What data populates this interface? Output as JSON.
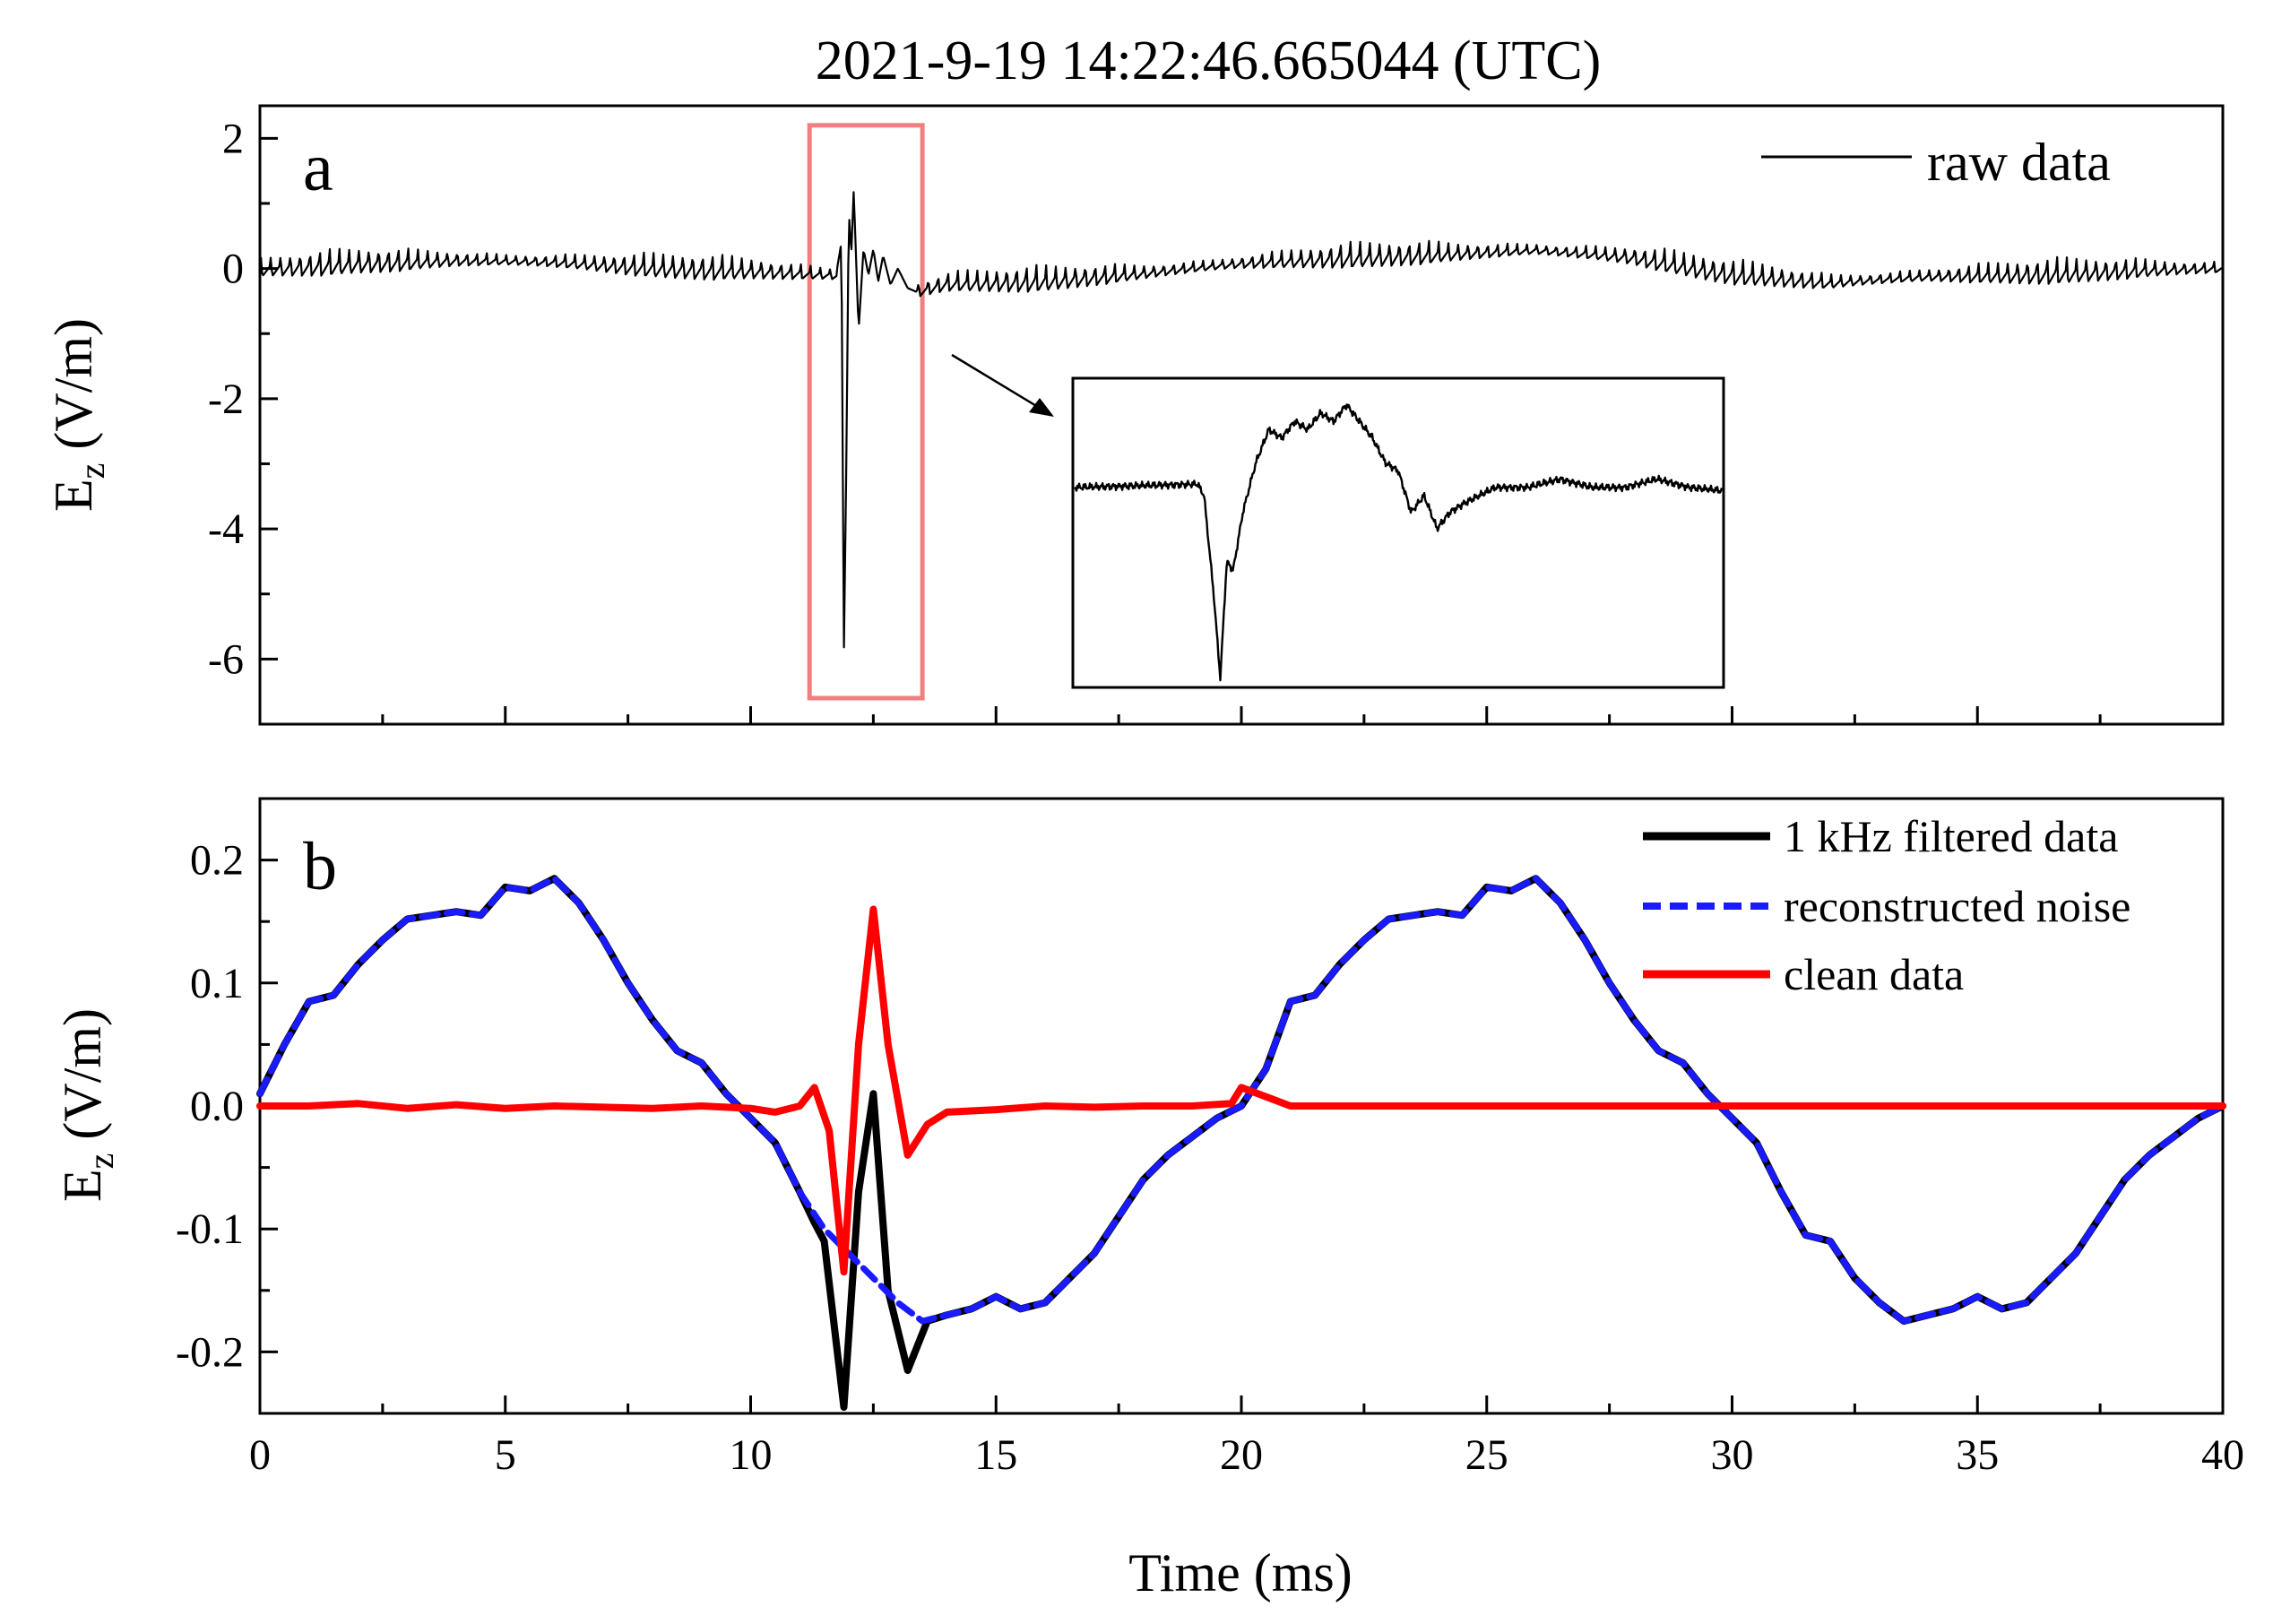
{
  "chart_data": {
    "title": "2021-9-19 14:22:46.665044 (UTC)",
    "shared_x": {
      "label": "Time (ms)",
      "range": [
        0,
        40
      ],
      "ticks": [
        "0",
        "5",
        "10",
        "15",
        "20",
        "25",
        "30",
        "35",
        "40"
      ]
    },
    "panels": [
      {
        "id": "a",
        "letter": "a",
        "type": "line",
        "ylabel": "E",
        "ylabel_sub": "z",
        "ylabel_unit": " (V/m)",
        "ylim": [
          -7,
          2.5
        ],
        "yticks": [
          "2",
          "0",
          "-2",
          "-4",
          "-6"
        ],
        "legend": {
          "position": "top-right",
          "entries": [
            "raw data"
          ]
        },
        "series": [
          {
            "name": "raw data",
            "color": "#000000",
            "noise_period_ms": 0.2,
            "baseline_x": [
              0,
              2,
              4,
              6,
              8,
              10,
              11,
              12,
              13.3,
              14,
              16,
              18,
              20,
              22,
              24,
              26,
              28,
              30,
              32,
              34,
              36,
              38,
              40
            ],
            "baseline_y": [
              0.02,
              0.12,
              0.15,
              0.12,
              0.05,
              0.0,
              -0.05,
              -0.1,
              -0.35,
              -0.2,
              -0.15,
              -0.05,
              0.1,
              0.2,
              0.25,
              0.3,
              0.2,
              -0.05,
              -0.2,
              -0.1,
              -0.05,
              0.0,
              0.02
            ],
            "spike_x": [
              11.75,
              11.85,
              11.9,
              11.95,
              12.0,
              12.05,
              12.1,
              12.2,
              12.3,
              12.4,
              12.5,
              12.6,
              12.7,
              12.85,
              13.0,
              13.2,
              13.35
            ],
            "spike_y": [
              -0.05,
              0.4,
              -5.9,
              -3.0,
              0.9,
              0.2,
              1.2,
              -0.95,
              0.3,
              -0.1,
              0.3,
              -0.2,
              0.2,
              -0.25,
              0.0,
              -0.3,
              -0.35
            ]
          }
        ],
        "highlight_box": {
          "x_range": [
            11.2,
            13.5
          ],
          "y_range": [
            -6.6,
            2.2
          ],
          "color": "#f08080"
        },
        "inset": {
          "x": [
            0,
            0.19,
            0.2,
            0.215,
            0.225,
            0.235,
            0.245,
            0.26,
            0.28,
            0.3,
            0.32,
            0.34,
            0.36,
            0.38,
            0.4,
            0.42,
            0.44,
            0.46,
            0.48,
            0.5,
            0.52,
            0.54,
            0.56,
            0.58,
            0.6,
            0.65,
            0.7,
            0.75,
            0.8,
            0.85,
            0.9,
            0.95,
            1.0
          ],
          "y": [
            0.15,
            0.17,
            0.1,
            -0.5,
            -1.0,
            -0.3,
            -0.35,
            0.0,
            0.3,
            0.5,
            0.45,
            0.55,
            0.5,
            0.6,
            0.55,
            0.65,
            0.55,
            0.45,
            0.3,
            0.25,
            0.0,
            0.1,
            -0.1,
            0.0,
            0.05,
            0.15,
            0.15,
            0.2,
            0.15,
            0.15,
            0.2,
            0.15,
            0.13
          ]
        }
      },
      {
        "id": "b",
        "letter": "b",
        "type": "line",
        "ylabel": "E",
        "ylabel_sub": "z",
        "ylabel_unit": " (V/m)",
        "ylim": [
          -0.25,
          0.25
        ],
        "yticks": [
          "0.2",
          "0.1",
          "0.0",
          "-0.1",
          "-0.2"
        ],
        "legend": {
          "position": "top-right",
          "entries": [
            "1 kHz filtered data",
            "reconstructed noise",
            "clean data"
          ]
        },
        "series": [
          {
            "name": "1 kHz filtered data",
            "color": "#000000",
            "style": "solid",
            "x": [
              0,
              0.5,
              1,
              1.5,
              2,
              2.5,
              3,
              3.5,
              4,
              4.5,
              5,
              5.5,
              6,
              6.5,
              7,
              7.5,
              8,
              8.5,
              9,
              9.5,
              10,
              10.5,
              11,
              11.3,
              11.5,
              11.9,
              12.2,
              12.5,
              12.8,
              13.2,
              13.6,
              14,
              14.5,
              15,
              15.5,
              16,
              16.5,
              17,
              17.5,
              18,
              18.5,
              19,
              19.5,
              20,
              20.5,
              21,
              21.5,
              22,
              22.5,
              23,
              23.5,
              24,
              24.5,
              25,
              25.5,
              26,
              26.5,
              27,
              27.5,
              28,
              28.5,
              29,
              29.5,
              30,
              30.5,
              31,
              31.5,
              32,
              32.5,
              33,
              33.5,
              34,
              34.5,
              35,
              35.5,
              36,
              36.5,
              37,
              37.5,
              38,
              38.5,
              39,
              39.5,
              40
            ],
            "y": [
              0.01,
              0.05,
              0.085,
              0.09,
              0.115,
              0.135,
              0.152,
              0.155,
              0.158,
              0.155,
              0.178,
              0.175,
              0.185,
              0.165,
              0.135,
              0.1,
              0.07,
              0.045,
              0.035,
              0.01,
              -0.01,
              -0.03,
              -0.07,
              -0.095,
              -0.11,
              -0.245,
              -0.07,
              0.01,
              -0.15,
              -0.215,
              -0.175,
              -0.17,
              -0.165,
              -0.155,
              -0.165,
              -0.16,
              -0.14,
              -0.12,
              -0.09,
              -0.06,
              -0.04,
              -0.025,
              -0.01,
              0.0,
              0.03,
              0.085,
              0.09,
              0.115,
              0.135,
              0.152,
              0.155,
              0.158,
              0.155,
              0.178,
              0.175,
              0.185,
              0.165,
              0.135,
              0.1,
              0.07,
              0.045,
              0.035,
              0.01,
              -0.01,
              -0.03,
              -0.07,
              -0.105,
              -0.11,
              -0.14,
              -0.16,
              -0.175,
              -0.17,
              -0.165,
              -0.155,
              -0.165,
              -0.16,
              -0.14,
              -0.12,
              -0.09,
              -0.06,
              -0.04,
              -0.025,
              -0.01,
              0.0
            ]
          },
          {
            "name": "reconstructed noise",
            "color": "#1a1aff",
            "style": "dashed",
            "x": [
              0,
              0.5,
              1,
              1.5,
              2,
              2.5,
              3,
              3.5,
              4,
              4.5,
              5,
              5.5,
              6,
              6.5,
              7,
              7.5,
              8,
              8.5,
              9,
              9.5,
              10,
              10.5,
              11,
              11.5,
              12,
              12.5,
              13,
              13.5,
              14,
              14.5,
              15,
              15.5,
              16,
              16.5,
              17,
              17.5,
              18,
              18.5,
              19,
              19.5,
              20,
              20.5,
              21,
              21.5,
              22,
              22.5,
              23,
              23.5,
              24,
              24.5,
              25,
              25.5,
              26,
              26.5,
              27,
              27.5,
              28,
              28.5,
              29,
              29.5,
              30,
              30.5,
              31,
              31.5,
              32,
              32.5,
              33,
              33.5,
              34,
              34.5,
              35,
              35.5,
              36,
              36.5,
              37,
              37.5,
              38,
              38.5,
              39,
              39.5,
              40
            ],
            "y": [
              0.01,
              0.05,
              0.085,
              0.09,
              0.115,
              0.135,
              0.152,
              0.155,
              0.158,
              0.155,
              0.178,
              0.175,
              0.185,
              0.165,
              0.135,
              0.1,
              0.07,
              0.045,
              0.035,
              0.01,
              -0.01,
              -0.03,
              -0.07,
              -0.1,
              -0.12,
              -0.14,
              -0.16,
              -0.175,
              -0.17,
              -0.165,
              -0.155,
              -0.165,
              -0.16,
              -0.14,
              -0.12,
              -0.09,
              -0.06,
              -0.04,
              -0.025,
              -0.01,
              0.0,
              0.03,
              0.085,
              0.09,
              0.115,
              0.135,
              0.152,
              0.155,
              0.158,
              0.155,
              0.178,
              0.175,
              0.185,
              0.165,
              0.135,
              0.1,
              0.07,
              0.045,
              0.035,
              0.01,
              -0.01,
              -0.03,
              -0.07,
              -0.105,
              -0.11,
              -0.14,
              -0.16,
              -0.175,
              -0.17,
              -0.165,
              -0.155,
              -0.165,
              -0.16,
              -0.14,
              -0.12,
              -0.09,
              -0.06,
              -0.04,
              -0.025,
              -0.01,
              0.0
            ]
          },
          {
            "name": "clean data",
            "color": "#ff0000",
            "style": "solid",
            "x": [
              0,
              1,
              2,
              3,
              4,
              5,
              6,
              7,
              8,
              9,
              10,
              10.5,
              11,
              11.3,
              11.6,
              11.9,
              12.2,
              12.5,
              12.8,
              13.2,
              13.6,
              14,
              15,
              16,
              17,
              18,
              19,
              19.8,
              20,
              21,
              22,
              23,
              24,
              25,
              26,
              27,
              28,
              29,
              30,
              31,
              32,
              33,
              34,
              35,
              36,
              37,
              38,
              39,
              40
            ],
            "y": [
              0.0,
              0.0,
              0.002,
              -0.002,
              0.001,
              -0.002,
              0.0,
              -0.001,
              -0.002,
              0.0,
              -0.002,
              -0.005,
              0.0,
              0.015,
              -0.02,
              -0.135,
              0.05,
              0.16,
              0.05,
              -0.04,
              -0.015,
              -0.005,
              -0.003,
              0.0,
              -0.001,
              0.0,
              0.0,
              0.002,
              0.015,
              0.0,
              0.0,
              0.0,
              0.0,
              0.0,
              0.0,
              0.0,
              0.0,
              0.0,
              0.0,
              0.0,
              0.0,
              0.0,
              0.0,
              0.0,
              0.0,
              0.0,
              0.0,
              0.0,
              0.0
            ]
          }
        ]
      }
    ]
  }
}
